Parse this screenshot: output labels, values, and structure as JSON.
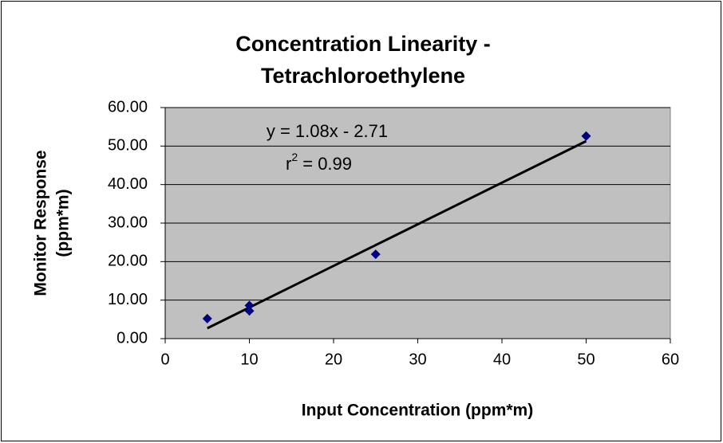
{
  "chart_data": {
    "type": "scatter",
    "title": [
      "Concentration Linearity -",
      "Tetrachloroethylene"
    ],
    "xlabel": "Input Concentration (ppm*m)",
    "ylabel": [
      "Monitor Response",
      "(ppm*m)"
    ],
    "x": [
      5,
      10,
      10,
      25,
      50
    ],
    "values": [
      5.2,
      8.6,
      7.2,
      21.9,
      52.6
    ],
    "color": "#000080",
    "xlim": [
      0,
      60
    ],
    "xticks": [
      0,
      10,
      20,
      30,
      40,
      50,
      60
    ],
    "ylim": [
      0,
      60
    ],
    "yticks": [
      {
        "value": 0,
        "label": "0.00"
      },
      {
        "value": 10,
        "label": "10.00"
      },
      {
        "value": 20,
        "label": "20.00"
      },
      {
        "value": 30,
        "label": "30.00"
      },
      {
        "value": 40,
        "label": "40.00"
      },
      {
        "value": 50,
        "label": "50.00"
      },
      {
        "value": 60,
        "label": "60.00"
      }
    ],
    "grid": true,
    "background": "#c0c0c0",
    "trendline": {
      "equation": "y = 1.08x - 2.71",
      "slope": 1.08,
      "intercept": -2.71,
      "r2": {
        "base": "r",
        "exponent": "2",
        "rest": " = 0.99"
      }
    }
  }
}
